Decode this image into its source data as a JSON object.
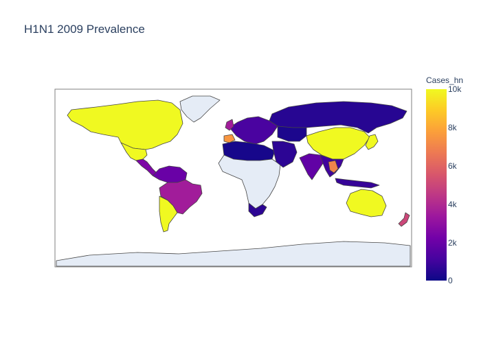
{
  "title": "H1N1 2009 Prevalence",
  "colorbar": {
    "title": "Cases_hn",
    "ticks": [
      "10k",
      "8k",
      "6k",
      "4k",
      "2k",
      "0"
    ],
    "range": [
      0,
      10000
    ],
    "colorscale": [
      "#0d0887",
      "#46039f",
      "#7201a8",
      "#9c179e",
      "#bd3786",
      "#d8576b",
      "#ed7953",
      "#fb9f3a",
      "#fdca26",
      "#f0f921"
    ]
  },
  "colors": {
    "ocean": "#ffffff",
    "no_data": "#e5ecf6",
    "border": "#444444",
    "frame": "#7f7f7f"
  },
  "regions": [
    {
      "name": "United States / Canada",
      "cases": 10000
    },
    {
      "name": "Mexico",
      "cases": 10000
    },
    {
      "name": "Central America",
      "cases": 2500
    },
    {
      "name": "Northern South America",
      "cases": 2000
    },
    {
      "name": "Brazil",
      "cases": 3500
    },
    {
      "name": "Argentina / Chile",
      "cases": 10000
    },
    {
      "name": "Greenland",
      "cases": null
    },
    {
      "name": "Russia",
      "cases": 500
    },
    {
      "name": "Europe",
      "cases": 1200
    },
    {
      "name": "United Kingdom",
      "cases": 3500
    },
    {
      "name": "Spain",
      "cases": 7500
    },
    {
      "name": "North Africa",
      "cases": 200
    },
    {
      "name": "Sub-Saharan Africa",
      "cases": null
    },
    {
      "name": "South Africa",
      "cases": 600
    },
    {
      "name": "Middle East",
      "cases": 600
    },
    {
      "name": "Central Asia",
      "cases": 300
    },
    {
      "name": "India",
      "cases": 1800
    },
    {
      "name": "China",
      "cases": 10000
    },
    {
      "name": "Japan",
      "cases": 10000
    },
    {
      "name": "Southeast Asia",
      "cases": 1000
    },
    {
      "name": "Thailand",
      "cases": 7000
    },
    {
      "name": "Indonesia",
      "cases": 800
    },
    {
      "name": "Australia",
      "cases": 10000
    },
    {
      "name": "New Zealand",
      "cases": 5000
    },
    {
      "name": "Antarctica",
      "cases": null
    }
  ]
}
